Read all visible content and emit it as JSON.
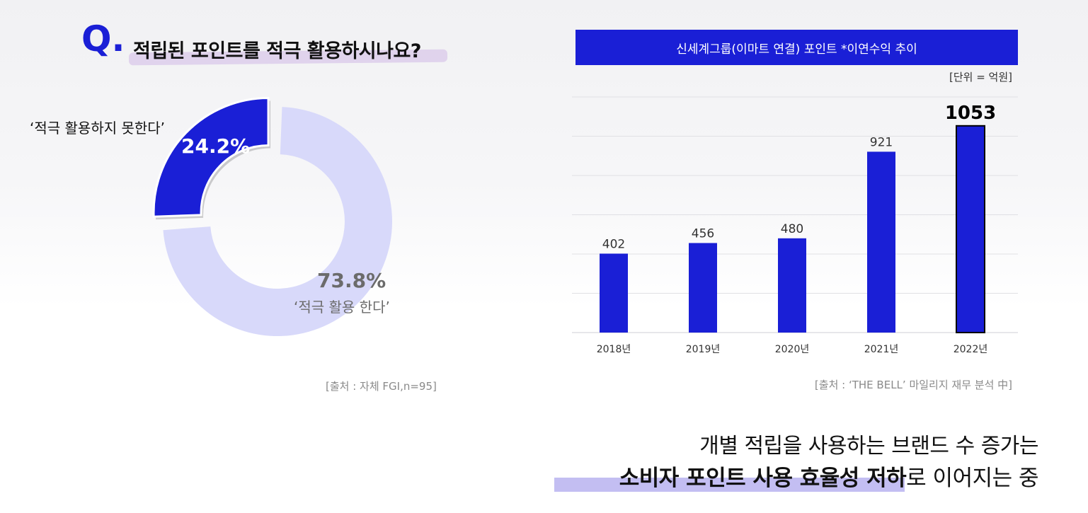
{
  "left": {
    "q_mark": "Q.",
    "question": "적립된 포인트를 적극 활용하시나요?",
    "label_cannot": "‘적극 활용하지 못한다’",
    "pct_cannot": "24.2%",
    "pct_can": "73.8%",
    "label_can": "‘적극 활용 한다’",
    "source": "[출처 : 자체 FGI,n=95]"
  },
  "right": {
    "header": "신세계그룹(이마트 연결) 포인트 *이연수익 추이",
    "unit": "[단위 = 억원]",
    "source": "[출처 : ‘THE BELL’ 마일리지 재무 분석 中]"
  },
  "bottom": {
    "line1": "개별 적립을 사용하는 브랜드 수 증가는",
    "line2_bold": "소비자 포인트 사용 효율성 저하",
    "line2_rest": "로 이어지는 중"
  },
  "colors": {
    "accent": "#1a1fd6",
    "donut_light": "#d8d9fa",
    "highlight": "#d9c8ea"
  },
  "chart_data": [
    {
      "type": "pie",
      "title": "적립된 포인트를 적극 활용하시나요?",
      "categories": [
        "‘적극 활용하지 못한다’",
        "‘적극 활용 한다’"
      ],
      "values": [
        24.2,
        73.8
      ]
    },
    {
      "type": "bar",
      "title": "신세계그룹(이마트 연결) 포인트 *이연수익 추이",
      "categories": [
        "2018년",
        "2019년",
        "2020년",
        "2021년",
        "2022년"
      ],
      "values": [
        402,
        456,
        480,
        921,
        1053
      ],
      "ylabel": "",
      "ylim": [
        0,
        1200
      ],
      "grid": true
    }
  ]
}
